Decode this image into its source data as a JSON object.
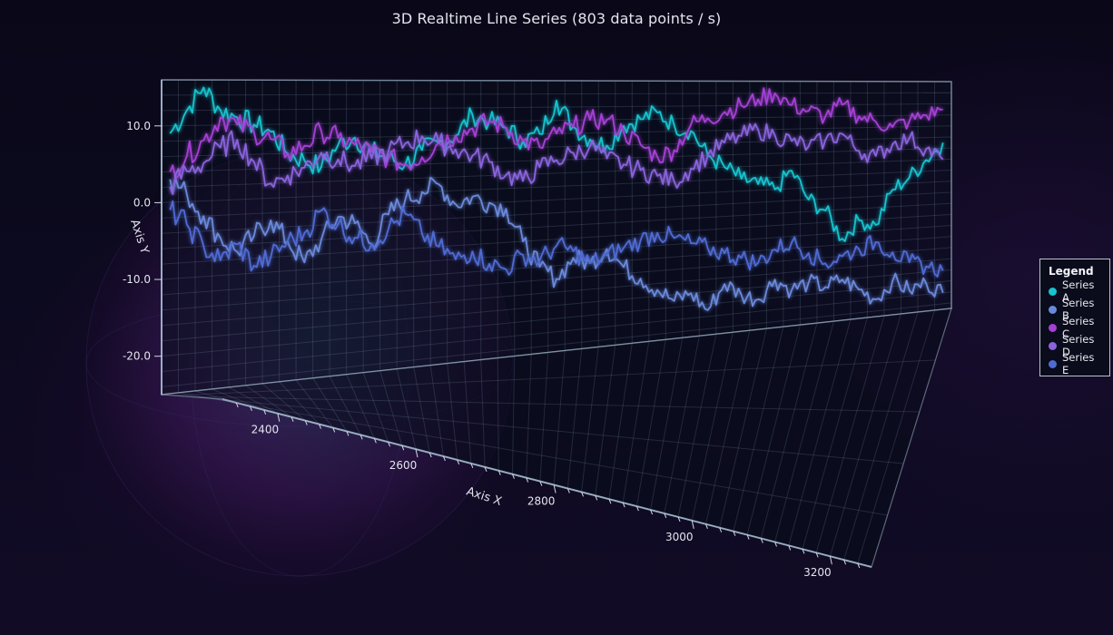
{
  "chart_data": {
    "type": "line",
    "title": "3D Realtime Line Series (803 data points / s)",
    "xlabel": "Axis X",
    "ylabel": "Axis Y",
    "xlim": [
      2320,
      3260
    ],
    "ylim": [
      -25,
      16
    ],
    "x_ticks": [
      "2400",
      "2600",
      "2800",
      "3000",
      "3200"
    ],
    "y_ticks": [
      "10.0",
      "0.0",
      "-10.0",
      "-20.0"
    ],
    "legend": {
      "title": "Legend",
      "placement": "right"
    },
    "x": [
      2330,
      2350,
      2370,
      2390,
      2410,
      2430,
      2450,
      2470,
      2490,
      2510,
      2530,
      2550,
      2570,
      2590,
      2610,
      2630,
      2650,
      2670,
      2690,
      2710,
      2730,
      2750,
      2770,
      2790,
      2810,
      2830,
      2850,
      2870,
      2890,
      2910,
      2930,
      2950,
      2970,
      2990,
      3010,
      3030,
      3050,
      3070,
      3090,
      3110,
      3130,
      3150,
      3170,
      3190,
      3210,
      3230,
      3250
    ],
    "series": [
      {
        "name": "Series A",
        "color": "#17c3cf",
        "values": [
          9,
          12,
          15,
          12,
          11,
          10,
          9,
          6,
          5,
          4,
          7,
          8,
          6,
          5,
          4,
          6,
          7,
          8,
          11,
          10,
          9,
          7,
          8,
          13,
          9,
          7,
          6,
          9,
          10,
          11,
          9,
          8,
          4,
          2,
          0,
          -1,
          -2,
          1,
          -4,
          -6,
          -11,
          -8,
          -9,
          -3,
          -1,
          2,
          5
        ]
      },
      {
        "name": "Series B",
        "color": "#6a89dc",
        "values": [
          3,
          1,
          -2,
          -5,
          -7,
          -5,
          -3,
          -6,
          -9,
          -6,
          -3,
          -4,
          -7,
          -3,
          -1,
          0,
          1,
          -2,
          -1,
          -2,
          -3,
          -8,
          -12,
          -14,
          -11,
          -12,
          -10,
          -13,
          -15,
          -17,
          -19,
          -18,
          -21,
          -17,
          -19,
          -20,
          -17,
          -19,
          -18,
          -19,
          -18,
          -20,
          -22,
          -19,
          -21,
          -20,
          -22
        ]
      },
      {
        "name": "Series C",
        "color": "#a540d6",
        "values": [
          4,
          6,
          8,
          11,
          10,
          9,
          8,
          6,
          7,
          9,
          8,
          7,
          6,
          5,
          4,
          5,
          7,
          8,
          9,
          10,
          9,
          7,
          6,
          8,
          9,
          10,
          10,
          8,
          6,
          4,
          5,
          9,
          10,
          11,
          12,
          13,
          14,
          12,
          11,
          10,
          12,
          10,
          9,
          8,
          9,
          10,
          11
        ]
      },
      {
        "name": "Series D",
        "color": "#8a63dd",
        "values": [
          2,
          4,
          5,
          7,
          8,
          5,
          2,
          3,
          4,
          6,
          5,
          4,
          5,
          6,
          7,
          8,
          7,
          6,
          5,
          4,
          2,
          1,
          3,
          4,
          5,
          6,
          4,
          3,
          2,
          1,
          0,
          2,
          4,
          6,
          7,
          8,
          7,
          6,
          5,
          6,
          7,
          4,
          3,
          5,
          6,
          4,
          2
        ]
      },
      {
        "name": "Series E",
        "color": "#4f6bd3",
        "values": [
          -1,
          -3,
          -6,
          -8,
          -6,
          -9,
          -8,
          -6,
          -5,
          -2,
          -4,
          -6,
          -7,
          -5,
          -3,
          -6,
          -8,
          -10,
          -9,
          -11,
          -12,
          -10,
          -11,
          -9,
          -10,
          -12,
          -11,
          -10,
          -9,
          -8,
          -9,
          -10,
          -11,
          -12,
          -13,
          -14,
          -12,
          -11,
          -13,
          -15,
          -14,
          -13,
          -12,
          -14,
          -16,
          -17,
          -18
        ]
      }
    ]
  }
}
